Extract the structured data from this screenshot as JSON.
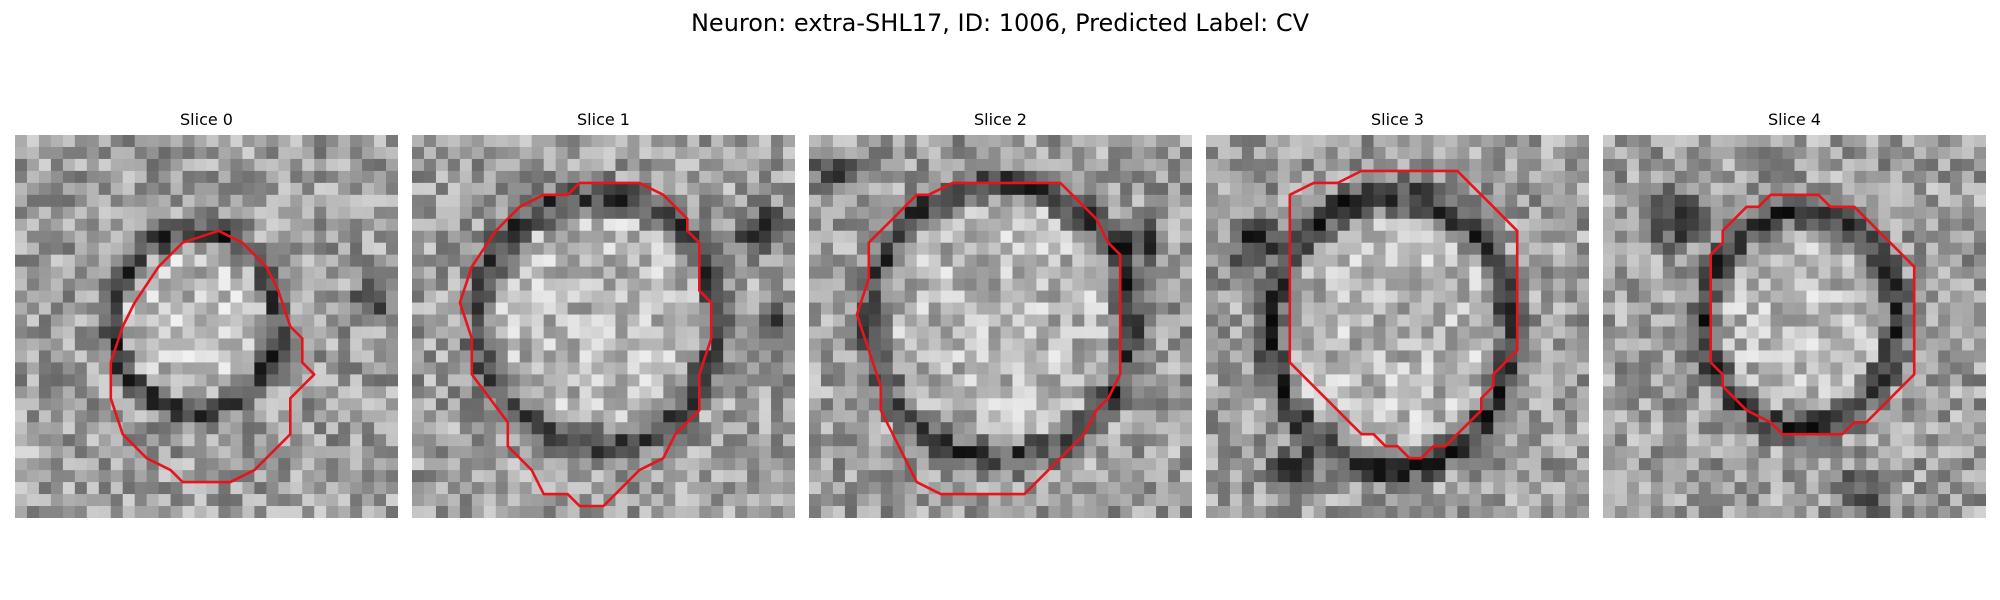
{
  "figure": {
    "title": "Neuron: extra-SHL17, ID: 1006, Predicted Label: CV"
  },
  "panels": [
    {
      "title": "Slice 0"
    },
    {
      "title": "Slice 1"
    },
    {
      "title": "Slice 2"
    },
    {
      "title": "Slice 3"
    },
    {
      "title": "Slice 4"
    }
  ],
  "colors": {
    "contour": "#e8141c",
    "background": "#ffffff"
  }
}
